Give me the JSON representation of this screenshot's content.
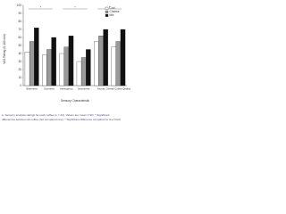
{
  "chart_data": {
    "type": "bar",
    "y_label": "VAS Rating (0-100 mm)",
    "x_label": "Sensory Characteristic",
    "categories": [
      "Bitterness",
      "Sourness",
      "Astringency",
      "Sweetness",
      "Aroma",
      "Overall Coffee Quality"
    ],
    "series": [
      {
        "name": "Cod",
        "color": "#ffffff",
        "values": [
          42,
          38,
          40,
          30,
          55,
          48
        ]
      },
      {
        "name": "Cheese",
        "color": "#9a9a9a",
        "values": [
          55,
          45,
          48,
          35,
          62,
          55
        ]
      },
      {
        "name": "Mix",
        "color": "#111111",
        "values": [
          72,
          60,
          62,
          45,
          70,
          70
        ]
      }
    ],
    "ylim": [
      0,
      100
    ],
    "yticks": [
      0,
      10,
      20,
      30,
      40,
      50,
      60,
      70,
      80,
      90,
      100
    ],
    "annotations": [
      "*",
      "*",
      "*"
    ],
    "legend": "top-right",
    "caption": [
      "a. Sensory analysis ratings for each coffee (n = 24). Values are mean ± SD. * Significant",
      "differences between all coffee (hot compared one). * Significant difference compared to Cov Perh."
    ]
  }
}
